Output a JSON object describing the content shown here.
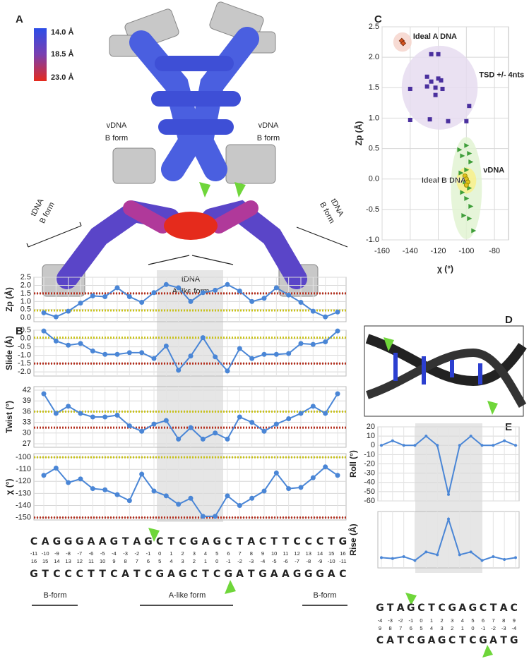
{
  "panels": {
    "a": "A",
    "b": "B",
    "c": "C",
    "d": "D",
    "e": "E"
  },
  "panel_a": {
    "colorbar": [
      "14.0 Å",
      "18.5 Å",
      "23.0 Å"
    ],
    "labels": [
      [
        "vDNA",
        "B form"
      ],
      [
        "vDNA",
        "B form"
      ],
      [
        "tDNA",
        "B form"
      ],
      [
        "tDNA",
        "B form"
      ],
      [
        "tDNA",
        "A-like form"
      ]
    ]
  },
  "sequence_b": {
    "top": [
      "C",
      "A",
      "G",
      "G",
      "G",
      "A",
      "A",
      "G",
      "T",
      "A",
      "G",
      "C",
      "T",
      "C",
      "G",
      "A",
      "G",
      "C",
      "T",
      "A",
      "C",
      "T",
      "T",
      "C",
      "C",
      "C",
      "T",
      "G"
    ],
    "numbers_top": [
      -11,
      -10,
      -9,
      -8,
      -7,
      -6,
      -5,
      -4,
      -3,
      -2,
      -1,
      0,
      1,
      2,
      3,
      4,
      5,
      6,
      7,
      8,
      9,
      10,
      11,
      12,
      13,
      14,
      15,
      16
    ],
    "numbers_bottom": [
      16,
      15,
      14,
      13,
      12,
      11,
      10,
      9,
      8,
      7,
      6,
      5,
      4,
      3,
      2,
      1,
      0,
      -1,
      -2,
      -3,
      -4,
      -5,
      -6,
      -7,
      -8,
      -9,
      -10,
      -11
    ],
    "bottom": [
      "G",
      "T",
      "C",
      "C",
      "C",
      "T",
      "T",
      "C",
      "A",
      "T",
      "C",
      "G",
      "A",
      "G",
      "C",
      "T",
      "C",
      "G",
      "A",
      "T",
      "G",
      "A",
      "A",
      "G",
      "G",
      "G",
      "A",
      "C"
    ],
    "regions": [
      "B-form",
      "A-like form",
      "B-form"
    ]
  },
  "sequence_e": {
    "top": [
      "G",
      "T",
      "A",
      "G",
      "C",
      "T",
      "C",
      "G",
      "A",
      "G",
      "C",
      "T",
      "A",
      "C"
    ],
    "numbers_top": [
      -4,
      -3,
      -2,
      -1,
      0,
      1,
      2,
      3,
      4,
      5,
      6,
      7,
      8,
      9
    ],
    "numbers_bottom": [
      9,
      8,
      7,
      6,
      5,
      4,
      3,
      2,
      1,
      0,
      -1,
      -2,
      -3,
      -4
    ],
    "bottom": [
      "C",
      "A",
      "T",
      "C",
      "G",
      "A",
      "G",
      "C",
      "T",
      "C",
      "G",
      "A",
      "T",
      "G"
    ]
  },
  "chart_data": [
    {
      "type": "scatter",
      "xlabel": "χ (°)",
      "ylabel": "Zp (Å)",
      "xlim": [
        -160,
        -70
      ],
      "ylim": [
        -1,
        2.5
      ],
      "xticks": [
        -160,
        -140,
        -120,
        -100,
        -80
      ],
      "yticks": [
        {
          "value": -1,
          "label": "-1.0"
        },
        -0.5,
        {
          "value": 0,
          "label": "0.0"
        },
        0.5,
        {
          "value": 1,
          "label": "1.0"
        },
        1.5,
        {
          "value": 2,
          "label": "2.0"
        },
        2.5
      ],
      "grid": true,
      "series": [
        {
          "name": "Ideal A DNA",
          "color": "#d9541e",
          "marker": "diamond",
          "x": [
            -146,
            -145
          ],
          "y": [
            2.27,
            2.23
          ]
        },
        {
          "name": "TSD +/- 4nts",
          "color": "#4a2f9e",
          "marker": "square",
          "x": [
            -125,
            -120,
            -128,
            -120,
            -125,
            -118,
            -140,
            -128,
            -122,
            -117,
            -122,
            -98,
            -140,
            -126,
            -113,
            -100
          ],
          "y": [
            2.05,
            2.05,
            1.68,
            1.65,
            1.6,
            1.62,
            1.48,
            1.52,
            1.5,
            1.48,
            1.38,
            1.2,
            0.97,
            0.98,
            0.95,
            0.95
          ]
        },
        {
          "name": "vDNA",
          "color": "#3f9e3a",
          "marker": "triangle",
          "x": [
            -100,
            -105,
            -98,
            -103,
            -97,
            -100,
            -104,
            -101,
            -98,
            -103,
            -100,
            -97,
            -102,
            -98,
            -95
          ],
          "y": [
            0.55,
            0.48,
            0.42,
            0.38,
            0.28,
            0.15,
            0.1,
            -0.05,
            -0.15,
            -0.22,
            -0.32,
            -0.45,
            -0.6,
            -0.65,
            -0.85
          ]
        },
        {
          "name": "Ideal B DNA",
          "color": "#e0c21a",
          "marker": "circle",
          "x": [
            -101,
            -100,
            -99,
            -100
          ],
          "y": [
            0.05,
            0,
            -0.05,
            -0.1
          ]
        }
      ]
    },
    {
      "type": "line",
      "ylabel": "Zp (Å)",
      "ylim": [
        -0.25,
        2.5
      ],
      "yticks": [
        {
          "value": 0,
          "label": "0.0"
        },
        0.5,
        {
          "value": 1,
          "label": "1.0"
        },
        1.5,
        {
          "value": 2,
          "label": "2.0"
        },
        2.5
      ],
      "grid": true,
      "color": "#4a86d6",
      "values": [
        0.3,
        0.05,
        0.4,
        0.9,
        1.35,
        1.3,
        1.85,
        1.3,
        0.95,
        1.55,
        2.05,
        1.85,
        1.0,
        1.55,
        1.7,
        2.05,
        1.65,
        1.0,
        1.2,
        1.85,
        1.4,
        0.95,
        0.4,
        0.05,
        0.35
      ],
      "hlines": [
        {
          "value": 1.5,
          "color": "#b5301f"
        },
        {
          "value": 0.45,
          "color": "#c9c21a"
        }
      ]
    },
    {
      "type": "line",
      "ylabel": "Slide (Å)",
      "ylim": [
        -2.25,
        0.5
      ],
      "yticks": [
        0.5,
        {
          "value": 0,
          "label": "0.0"
        },
        -0.5,
        {
          "value": -1,
          "label": "-1.0"
        },
        -1.5,
        {
          "value": -2,
          "label": "-2.0"
        }
      ],
      "grid": true,
      "color": "#4a86d6",
      "values": [
        0.45,
        -0.15,
        -0.4,
        -0.3,
        -0.75,
        -0.95,
        -0.95,
        -0.85,
        -0.85,
        -1.2,
        -0.45,
        -1.9,
        -1.05,
        0.05,
        -1.1,
        -1.95,
        -0.6,
        -1.2,
        -0.95,
        -0.95,
        -0.9,
        -0.3,
        -0.35,
        -0.2,
        0.45
      ],
      "hlines": [
        {
          "value": -1.5,
          "color": "#b5301f"
        },
        {
          "value": 0.05,
          "color": "#c9c21a"
        }
      ]
    },
    {
      "type": "line",
      "ylabel": "Twist (°)",
      "ylim": [
        26,
        43
      ],
      "yticks": [
        27,
        30,
        33,
        36,
        39,
        42
      ],
      "grid": true,
      "color": "#4a86d6",
      "values": [
        41,
        35.5,
        37.5,
        35.5,
        34.5,
        34.5,
        35,
        32,
        30.5,
        32.5,
        33.5,
        28.3,
        31.5,
        28.3,
        30,
        28.3,
        34.5,
        33,
        30.5,
        32.5,
        34,
        35.5,
        37.5,
        35.5,
        41
      ],
      "hlines": [
        {
          "value": 31.5,
          "color": "#b5301f"
        },
        {
          "value": 36,
          "color": "#c9c21a"
        }
      ]
    },
    {
      "type": "line",
      "ylabel": "χ (°)",
      "ylim": [
        -152,
        -97
      ],
      "yticks": [
        -100,
        -110,
        -120,
        -130,
        -140,
        -150
      ],
      "grid": true,
      "color": "#4a86d6",
      "values": [
        -115,
        -109,
        -121,
        -118,
        -126,
        -127,
        -131,
        -136,
        -114,
        -128,
        -132,
        -139,
        -134,
        -149,
        -149,
        -132,
        -140,
        -134,
        -128,
        -113,
        -126,
        -125,
        -117,
        -108,
        -115
      ],
      "hlines": [
        {
          "value": -150,
          "color": "#b5301f"
        },
        {
          "value": -100,
          "color": "#c9c21a"
        }
      ]
    },
    {
      "type": "line",
      "ylabel": "Roll (°)",
      "ylim": [
        -60,
        20
      ],
      "yticks": [
        20,
        10,
        0,
        -10,
        -20,
        -30,
        -40,
        -50,
        -60
      ],
      "grid": true,
      "color": "#4a86d6",
      "values": [
        0,
        5,
        0,
        0,
        10,
        0,
        -53,
        0,
        10,
        0,
        0,
        5,
        0
      ]
    },
    {
      "type": "line",
      "ylabel": "Rise (Å)",
      "ylim": [
        2,
        8
      ],
      "grid": true,
      "color": "#4a86d6",
      "values": [
        3.1,
        3.0,
        3.2,
        2.8,
        3.7,
        3.4,
        7.2,
        3.4,
        3.7,
        2.8,
        3.2,
        2.9,
        3.1
      ]
    }
  ]
}
